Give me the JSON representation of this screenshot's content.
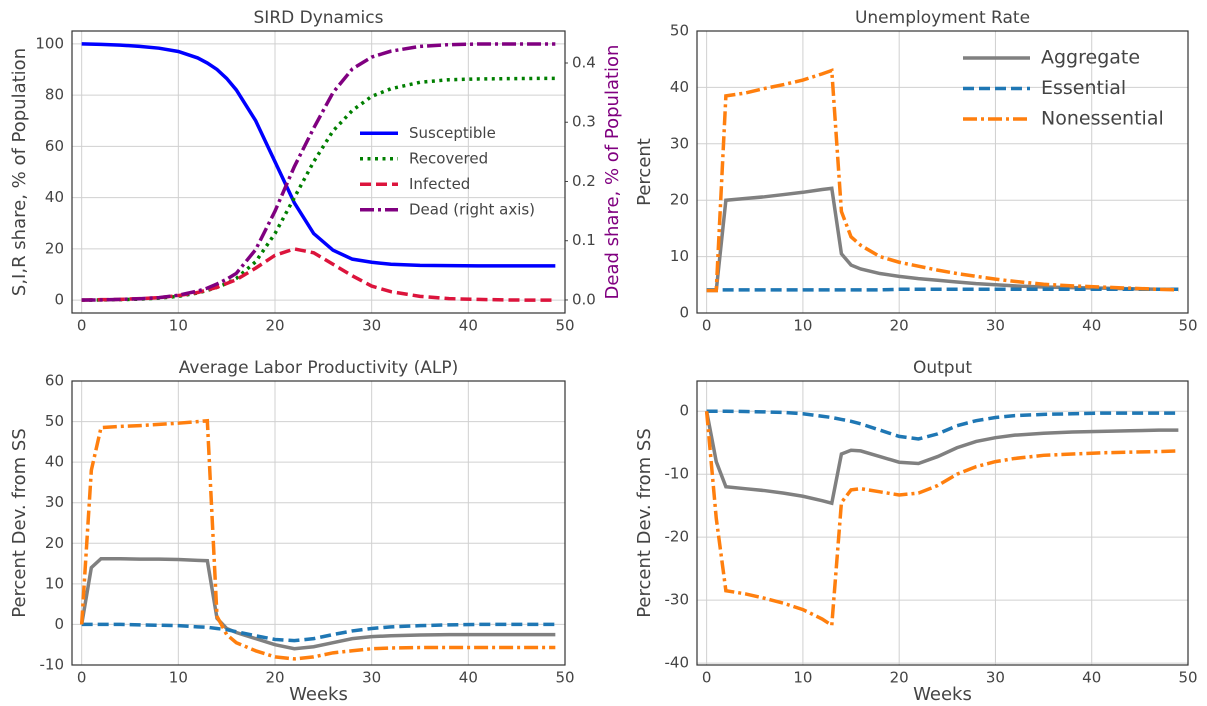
{
  "chart_data": [
    {
      "type": "line",
      "title": "SIRD Dynamics",
      "ylabel": "S,I,R share, % of Population",
      "y2label": "Dead share, % of Population",
      "y2label_color": "#800080",
      "x": [
        0,
        1,
        2,
        4,
        6,
        8,
        10,
        12,
        13,
        14,
        15,
        16,
        18,
        20,
        22,
        24,
        26,
        28,
        30,
        32,
        35,
        38,
        41,
        44,
        47,
        49
      ],
      "xlim": [
        -1,
        50
      ],
      "xticks": [
        0,
        10,
        20,
        30,
        40,
        50
      ],
      "ylim": [
        -5,
        105
      ],
      "yticks": [
        0,
        20,
        40,
        60,
        80,
        100
      ],
      "y2lim": [
        -0.022,
        0.454
      ],
      "y2ticks": [
        {
          "value": 0,
          "label": "0.0"
        },
        0.1,
        0.2,
        0.3,
        0.4
      ],
      "grid": true,
      "legend": "center right",
      "series": [
        {
          "name": "Susceptible",
          "color": "#0000ff",
          "linestyle": "solid",
          "values": [
            100,
            99.9,
            99.8,
            99.5,
            99,
            98.3,
            97,
            94.5,
            92.5,
            90,
            86.5,
            82,
            70,
            54,
            38,
            26,
            19.5,
            16,
            14.8,
            14,
            13.6,
            13.5,
            13.4,
            13.4,
            13.4,
            13.4
          ]
        },
        {
          "name": "Recovered",
          "color": "#007f00",
          "linestyle": "dotted",
          "values": [
            0,
            0,
            0.1,
            0.2,
            0.4,
            0.8,
            1.5,
            2.8,
            3.8,
            5,
            6.5,
            8.5,
            15,
            26,
            40,
            54,
            66,
            74,
            79.5,
            82.5,
            85,
            86,
            86.3,
            86.4,
            86.5,
            86.5
          ]
        },
        {
          "name": "Infected",
          "color": "#dc143c",
          "linestyle": "dashed",
          "values": [
            0,
            0.1,
            0.2,
            0.3,
            0.6,
            1,
            1.8,
            3,
            4,
            5,
            6.5,
            8,
            12.5,
            17.5,
            20,
            18.5,
            14,
            9.5,
            5.5,
            3.3,
            1.5,
            0.6,
            0.3,
            0.1,
            0,
            0
          ]
        },
        {
          "name": "Dead (right axis)",
          "color": "#800080",
          "linestyle": "dashdot",
          "axis": "y2",
          "values": [
            0,
            0,
            0,
            0.001,
            0.002,
            0.004,
            0.008,
            0.015,
            0.02,
            0.027,
            0.035,
            0.045,
            0.085,
            0.15,
            0.225,
            0.29,
            0.35,
            0.39,
            0.41,
            0.42,
            0.428,
            0.431,
            0.432,
            0.432,
            0.432,
            0.432
          ]
        }
      ]
    },
    {
      "type": "line",
      "title": "Unemployment Rate",
      "ylabel": "Percent",
      "x": [
        0,
        1,
        2,
        4,
        6,
        8,
        10,
        12,
        13,
        14,
        15,
        16,
        18,
        20,
        22,
        24,
        26,
        28,
        30,
        32,
        35,
        38,
        41,
        44,
        47,
        49
      ],
      "xlim": [
        -1,
        50
      ],
      "xticks": [
        0,
        10,
        20,
        30,
        40,
        50
      ],
      "ylim": [
        0,
        50
      ],
      "yticks": [
        0,
        10,
        20,
        30,
        40,
        50
      ],
      "grid": true,
      "legend": "upper right",
      "series": [
        {
          "name": "Aggregate",
          "color": "#808080",
          "linestyle": "solid",
          "values": [
            4,
            4,
            20,
            20.3,
            20.6,
            21,
            21.4,
            21.9,
            22.1,
            10.5,
            8.5,
            7.8,
            7,
            6.5,
            6.1,
            5.8,
            5.5,
            5.2,
            5,
            4.8,
            4.6,
            4.5,
            4.4,
            4.3,
            4.2,
            4.2
          ]
        },
        {
          "name": "Essential",
          "color": "#1f77b4",
          "linestyle": "dashed",
          "values": [
            4.1,
            4.1,
            4.1,
            4.1,
            4.1,
            4.1,
            4.1,
            4.1,
            4.1,
            4.1,
            4.1,
            4.1,
            4.1,
            4.2,
            4.2,
            4.2,
            4.2,
            4.2,
            4.2,
            4.2,
            4.2,
            4.2,
            4.2,
            4.2,
            4.2,
            4.2
          ]
        },
        {
          "name": "Nonessential",
          "color": "#ff7f0e",
          "linestyle": "dashdot",
          "values": [
            4,
            4,
            38.5,
            39,
            39.8,
            40.5,
            41.3,
            42.4,
            43,
            18,
            13.5,
            12,
            10,
            9,
            8.3,
            7.6,
            7,
            6.5,
            6,
            5.6,
            5.1,
            4.8,
            4.6,
            4.4,
            4.2,
            4.1
          ]
        }
      ]
    },
    {
      "type": "line",
      "title": "Average Labor Productivity (ALP)",
      "ylabel": "Percent Dev. from SS",
      "xlabel": "Weeks",
      "x": [
        0,
        1,
        2,
        4,
        6,
        8,
        10,
        12,
        13,
        14,
        15,
        16,
        18,
        20,
        22,
        24,
        26,
        28,
        30,
        32,
        35,
        38,
        41,
        44,
        47,
        49
      ],
      "xlim": [
        -1,
        50
      ],
      "xticks": [
        0,
        10,
        20,
        30,
        40,
        50
      ],
      "ylim": [
        -10,
        60
      ],
      "yticks": [
        -10,
        0,
        10,
        20,
        30,
        40,
        50,
        60
      ],
      "grid": true,
      "series": [
        {
          "name": "Aggregate",
          "color": "#808080",
          "linestyle": "solid",
          "values": [
            0,
            14,
            16.2,
            16.2,
            16.1,
            16.1,
            16,
            15.8,
            15.7,
            1.5,
            -1,
            -2,
            -3.5,
            -5,
            -6,
            -5.5,
            -4.5,
            -3.5,
            -3,
            -2.8,
            -2.6,
            -2.5,
            -2.5,
            -2.5,
            -2.5,
            -2.5
          ]
        },
        {
          "name": "Essential",
          "color": "#1f77b4",
          "linestyle": "dashed",
          "values": [
            0,
            0,
            0,
            0,
            -0.1,
            -0.2,
            -0.3,
            -0.6,
            -0.7,
            -1,
            -1.3,
            -1.8,
            -2.8,
            -3.7,
            -4,
            -3.5,
            -2.5,
            -1.6,
            -1,
            -0.6,
            -0.3,
            -0.1,
            0,
            0,
            0,
            0
          ]
        },
        {
          "name": "Nonessential",
          "color": "#ff7f0e",
          "linestyle": "dashdot",
          "values": [
            0,
            38,
            48.5,
            48.8,
            49,
            49.3,
            49.6,
            50,
            50.2,
            2,
            -2.5,
            -4.5,
            -6.5,
            -8,
            -8.5,
            -8,
            -7,
            -6.5,
            -6,
            -5.8,
            -5.7,
            -5.7,
            -5.7,
            -5.7,
            -5.7,
            -5.7
          ]
        }
      ]
    },
    {
      "type": "line",
      "title": "Output",
      "ylabel": "Percent Dev. from SS",
      "xlabel": "Weeks",
      "x": [
        0,
        1,
        2,
        4,
        6,
        8,
        10,
        12,
        13,
        14,
        15,
        16,
        18,
        20,
        22,
        24,
        26,
        28,
        30,
        32,
        35,
        38,
        41,
        44,
        47,
        49
      ],
      "xlim": [
        -1,
        50
      ],
      "xticks": [
        0,
        10,
        20,
        30,
        40,
        50
      ],
      "ylim": [
        -40.3,
        4.8
      ],
      "yticks": [
        -40,
        -30,
        -20,
        -10,
        0
      ],
      "grid": true,
      "series": [
        {
          "name": "Aggregate",
          "color": "#808080",
          "linestyle": "solid",
          "values": [
            0,
            -8,
            -12,
            -12.3,
            -12.6,
            -13,
            -13.5,
            -14.2,
            -14.6,
            -6.8,
            -6.2,
            -6.3,
            -7.2,
            -8.1,
            -8.3,
            -7.2,
            -5.8,
            -4.8,
            -4.2,
            -3.8,
            -3.5,
            -3.3,
            -3.2,
            -3.1,
            -3,
            -3
          ]
        },
        {
          "name": "Essential",
          "color": "#1f77b4",
          "linestyle": "dashed",
          "values": [
            0,
            0,
            0,
            -0.05,
            -0.1,
            -0.2,
            -0.4,
            -0.8,
            -1,
            -1.3,
            -1.6,
            -2,
            -3,
            -4,
            -4.4,
            -3.6,
            -2.3,
            -1.5,
            -1,
            -0.7,
            -0.5,
            -0.4,
            -0.3,
            -0.3,
            -0.3,
            -0.3
          ]
        },
        {
          "name": "Nonessential",
          "color": "#ff7f0e",
          "linestyle": "dashdot",
          "values": [
            0,
            -17,
            -28.5,
            -29,
            -29.7,
            -30.5,
            -31.5,
            -33,
            -34,
            -14.5,
            -12.5,
            -12.3,
            -12.8,
            -13.3,
            -13,
            -11.8,
            -10,
            -8.8,
            -8,
            -7.5,
            -7,
            -6.8,
            -6.6,
            -6.5,
            -6.4,
            -6.3
          ]
        }
      ]
    }
  ]
}
